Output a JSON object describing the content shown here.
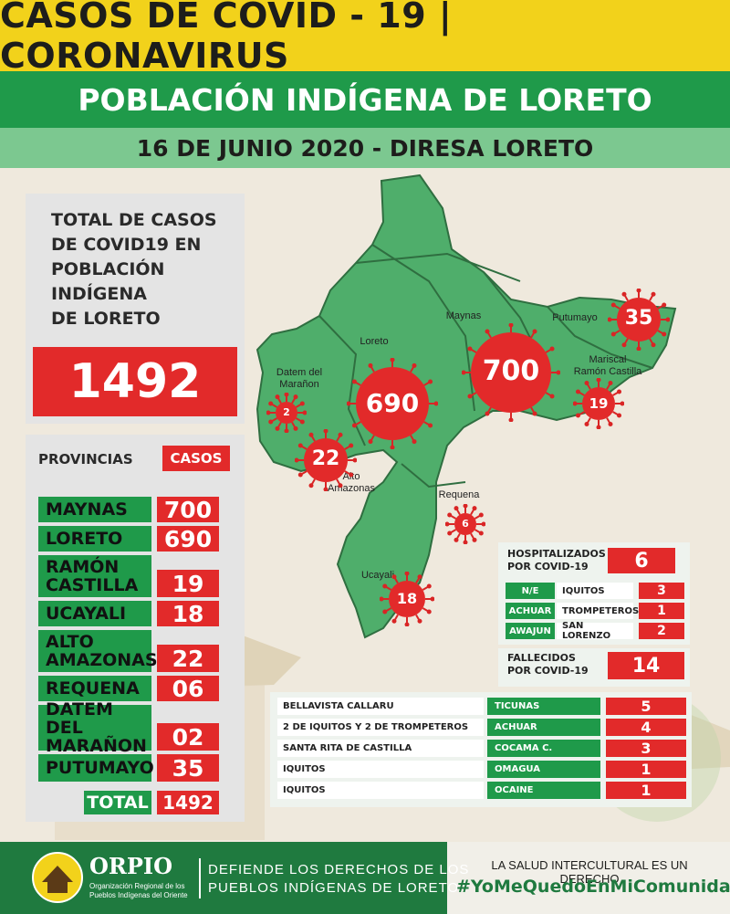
{
  "header": {
    "title": "CASOS DE COVID - 19 | CORONAVIRUS",
    "subtitle": "POBLACIÓN INDÍGENA DE LORETO",
    "date_line": "16 DE JUNIO 2020 - DIRESA LORETO"
  },
  "total": {
    "label_lines": [
      "TOTAL DE CASOS",
      "DE COVID19 EN",
      "POBLACIÓN",
      "INDÍGENA",
      "DE LORETO"
    ],
    "value": "1492"
  },
  "provinces_table": {
    "head_provincias": "PROVINCIAS",
    "head_casos": "CASOS",
    "rows": [
      {
        "name": "MAYNAS",
        "value": "700"
      },
      {
        "name": "LORETO",
        "value": "690"
      },
      {
        "name": "RAMÓN\nCASTILLA",
        "value": "19"
      },
      {
        "name": "UCAYALI",
        "value": "18"
      },
      {
        "name": "ALTO\nAMAZONAS",
        "value": "22"
      },
      {
        "name": "REQUENA",
        "value": "06"
      },
      {
        "name": "DATEM DEL\nMARAÑON",
        "value": "02"
      },
      {
        "name": "PUTUMAYO",
        "value": "35"
      }
    ],
    "total_label": "TOTAL",
    "total_value": "1492"
  },
  "map": {
    "labels": {
      "maynas": "Maynas",
      "putumayo": "Putumayo",
      "loreto": "Loreto",
      "mariscal": "Mariscal\nRamón Castilla",
      "datem": "Datem del\nMarañon",
      "alto": "Alto\nAmazonas",
      "requena": "Requena",
      "ucayali": "Ucayali"
    },
    "values": {
      "maynas": "700",
      "loreto": "690",
      "putumayo": "35",
      "mariscal": "19",
      "datem": "2",
      "alto": "22",
      "requena": "6",
      "ucayali": "18"
    }
  },
  "hospitalizados": {
    "label": "HOSPITALIZADOS\nPOR COVID-19",
    "value": "6",
    "rows": [
      {
        "group": "N/E",
        "place": "IQUITOS",
        "value": "3"
      },
      {
        "group": "ACHUAR",
        "place": "TROMPETEROS",
        "value": "1"
      },
      {
        "group": "AWAJUN",
        "place": "SAN LORENZO",
        "value": "2"
      }
    ]
  },
  "fallecidos": {
    "label": "FALLECIDOS\nPOR COVID-19",
    "value": "14",
    "rows": [
      {
        "place": "BELLAVISTA CALLARU",
        "group": "TICUNAS",
        "value": "5"
      },
      {
        "place": "2 DE IQUITOS Y 2 DE TROMPETEROS",
        "group": "ACHUAR",
        "value": "4"
      },
      {
        "place": "SANTA RITA DE CASTILLA",
        "group": "COCAMA C.",
        "value": "3"
      },
      {
        "place": "IQUITOS",
        "group": "OMAGUA",
        "value": "1"
      },
      {
        "place": "IQUITOS",
        "group": "OCAINE",
        "value": "1"
      }
    ]
  },
  "footer": {
    "org_name": "ORPIO",
    "org_full": "Organización Regional de los\nPueblos Indígenas del Oriente",
    "slogan_1": "DEFIENDE LOS DERECHOS DE LOS",
    "slogan_2": "PUEBLOS INDÍGENAS DE LORETO",
    "right_1": "LA SALUD INTERCULTURAL ES UN DERECHO",
    "hashtag": "#YoMeQuedoEnMiComunidad"
  },
  "colors": {
    "yellow": "#f2d21b",
    "green": "#1f9a4a",
    "light_green": "#7cc890",
    "red": "#e22a2a",
    "map_green": "#4fae6b"
  }
}
